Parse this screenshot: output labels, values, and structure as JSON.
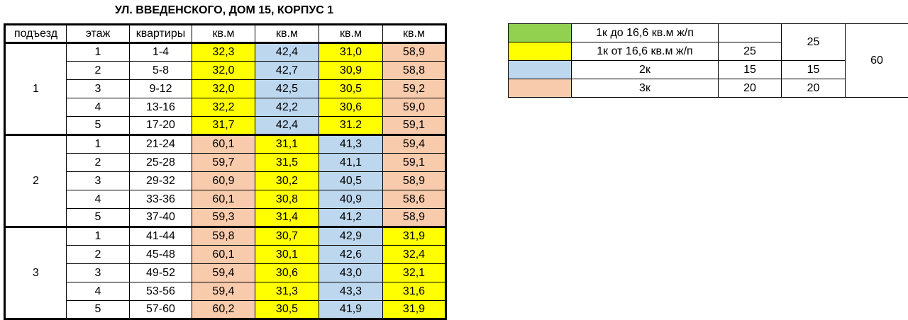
{
  "title": "УЛ. ВВЕДЕНСКОГО, ДОМ 15, КОРПУС 1",
  "table": {
    "headers": [
      "подъезд",
      "этаж",
      "квартиры",
      "кв.м",
      "кв.м",
      "кв.м",
      "кв.м"
    ],
    "entrances": [
      {
        "label": "1",
        "rows": [
          {
            "floor": "1",
            "apartments": "1-4",
            "areas": [
              {
                "text": "32,3",
                "color": "#ffff00"
              },
              {
                "text": "42,4",
                "color": "#bdd7ee"
              },
              {
                "text": "31,0",
                "color": "#ffff00"
              },
              {
                "text": "58,9",
                "color": "#f8cbad"
              }
            ]
          },
          {
            "floor": "2",
            "apartments": "5-8",
            "areas": [
              {
                "text": "32,0",
                "color": "#ffff00"
              },
              {
                "text": "42,7",
                "color": "#bdd7ee"
              },
              {
                "text": "30,9",
                "color": "#ffff00"
              },
              {
                "text": "58,8",
                "color": "#f8cbad"
              }
            ]
          },
          {
            "floor": "3",
            "apartments": "9-12",
            "areas": [
              {
                "text": "32,0",
                "color": "#ffff00"
              },
              {
                "text": "42,5",
                "color": "#bdd7ee"
              },
              {
                "text": "30,5",
                "color": "#ffff00"
              },
              {
                "text": "59,2",
                "color": "#f8cbad"
              }
            ]
          },
          {
            "floor": "4",
            "apartments": "13-16",
            "areas": [
              {
                "text": "32,2",
                "color": "#ffff00"
              },
              {
                "text": "42,2",
                "color": "#bdd7ee"
              },
              {
                "text": "30,6",
                "color": "#ffff00"
              },
              {
                "text": "59,0",
                "color": "#f8cbad"
              }
            ]
          },
          {
            "floor": "5",
            "apartments": "17-20",
            "areas": [
              {
                "text": "31,7",
                "color": "#ffff00"
              },
              {
                "text": "42,4",
                "color": "#bdd7ee"
              },
              {
                "text": "31.2",
                "color": "#ffff00"
              },
              {
                "text": "59,1",
                "color": "#f8cbad"
              }
            ]
          }
        ]
      },
      {
        "label": "2",
        "rows": [
          {
            "floor": "1",
            "apartments": "21-24",
            "areas": [
              {
                "text": "60,1",
                "color": "#f8cbad"
              },
              {
                "text": "31,1",
                "color": "#ffff00"
              },
              {
                "text": "41,3",
                "color": "#bdd7ee"
              },
              {
                "text": "59,4",
                "color": "#f8cbad"
              }
            ]
          },
          {
            "floor": "2",
            "apartments": "25-28",
            "areas": [
              {
                "text": "59,7",
                "color": "#f8cbad"
              },
              {
                "text": "31,5",
                "color": "#ffff00"
              },
              {
                "text": "41,1",
                "color": "#bdd7ee"
              },
              {
                "text": "59,1",
                "color": "#f8cbad"
              }
            ]
          },
          {
            "floor": "3",
            "apartments": "29-32",
            "areas": [
              {
                "text": "60,9",
                "color": "#f8cbad"
              },
              {
                "text": "30,2",
                "color": "#ffff00"
              },
              {
                "text": "40,5",
                "color": "#bdd7ee"
              },
              {
                "text": "58,9",
                "color": "#f8cbad"
              }
            ]
          },
          {
            "floor": "4",
            "apartments": "33-36",
            "areas": [
              {
                "text": "60,1",
                "color": "#f8cbad"
              },
              {
                "text": "30,8",
                "color": "#ffff00"
              },
              {
                "text": "40,9",
                "color": "#bdd7ee"
              },
              {
                "text": "58,6",
                "color": "#f8cbad"
              }
            ]
          },
          {
            "floor": "5",
            "apartments": "37-40",
            "areas": [
              {
                "text": "59,3",
                "color": "#f8cbad"
              },
              {
                "text": "31,4",
                "color": "#ffff00"
              },
              {
                "text": "41,2",
                "color": "#bdd7ee"
              },
              {
                "text": "58,9",
                "color": "#f8cbad"
              }
            ]
          }
        ]
      },
      {
        "label": "3",
        "rows": [
          {
            "floor": "1",
            "apartments": "41-44",
            "areas": [
              {
                "text": "59,8",
                "color": "#f8cbad"
              },
              {
                "text": "30,7",
                "color": "#ffff00"
              },
              {
                "text": "42,9",
                "color": "#bdd7ee"
              },
              {
                "text": "31,9",
                "color": "#ffff00"
              }
            ]
          },
          {
            "floor": "2",
            "apartments": "45-48",
            "areas": [
              {
                "text": "60,1",
                "color": "#f8cbad"
              },
              {
                "text": "30,1",
                "color": "#ffff00"
              },
              {
                "text": "42,6",
                "color": "#bdd7ee"
              },
              {
                "text": "32,4",
                "color": "#ffff00"
              }
            ]
          },
          {
            "floor": "3",
            "apartments": "49-52",
            "areas": [
              {
                "text": "59,4",
                "color": "#f8cbad"
              },
              {
                "text": "30,6",
                "color": "#ffff00"
              },
              {
                "text": "43,0",
                "color": "#bdd7ee"
              },
              {
                "text": "32,1",
                "color": "#ffff00"
              }
            ]
          },
          {
            "floor": "4",
            "apartments": "53-56",
            "areas": [
              {
                "text": "59,4",
                "color": "#f8cbad"
              },
              {
                "text": "31,3",
                "color": "#ffff00"
              },
              {
                "text": "43,3",
                "color": "#bdd7ee"
              },
              {
                "text": "31,6",
                "color": "#ffff00"
              }
            ]
          },
          {
            "floor": "5",
            "apartments": "57-60",
            "areas": [
              {
                "text": "60,2",
                "color": "#f8cbad"
              },
              {
                "text": "30,5",
                "color": "#ffff00"
              },
              {
                "text": "41,9",
                "color": "#bdd7ee"
              },
              {
                "text": "31,9",
                "color": "#ffff00"
              }
            ]
          }
        ]
      }
    ]
  },
  "legend": {
    "rows": [
      {
        "color": "#92d050",
        "label": "1к до 16,6 кв.м ж/п"
      },
      {
        "color": "#ffff00",
        "label": "1к от 16,6 кв.м ж/п",
        "count": 25
      },
      {
        "color": "#bdd7ee",
        "label": "2к",
        "count": 15,
        "subtotal": 15
      },
      {
        "color": "#f8cbad",
        "label": "3к",
        "count": 20,
        "subtotal": 20
      }
    ],
    "one_room_subtotal": 25,
    "total": 60
  }
}
